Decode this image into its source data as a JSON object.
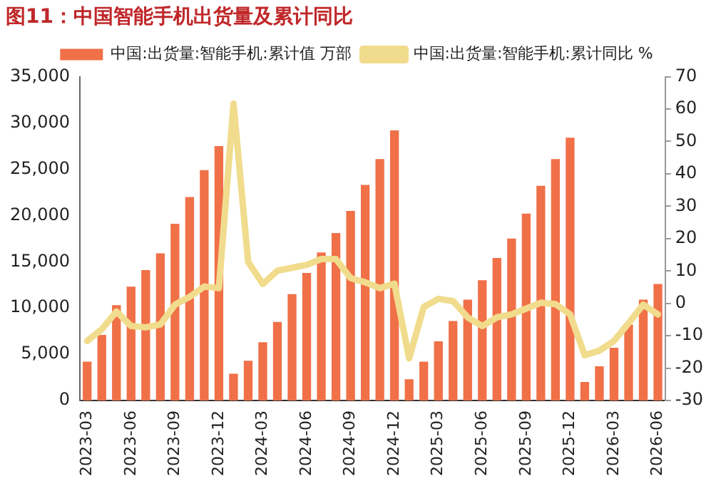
{
  "chart_data": {
    "type": "bar",
    "title": "图11：中国智能手机出货量及累计同比",
    "categories": [
      "2023-03",
      null,
      null,
      "2023-06",
      null,
      null,
      "2023-09",
      null,
      null,
      "2023-12",
      null,
      null,
      "2024-03",
      null,
      null,
      "2024-06",
      null,
      null,
      "2024-09",
      null,
      null,
      "2024-12",
      null,
      null,
      "2025-03",
      null,
      null,
      "2025-06",
      null,
      null,
      "2025-09",
      null,
      null,
      "2025-12",
      null,
      null,
      "2026-03",
      null,
      null,
      "2026-06"
    ],
    "series": [
      {
        "name": "中国:出货量:智能手机:累计值 万部",
        "color": "#f07048",
        "values": [
          4200,
          7100,
          10300,
          12300,
          14100,
          15900,
          19100,
          22000,
          24900,
          27500,
          2900,
          4300,
          6300,
          8500,
          11500,
          13800,
          16000,
          18100,
          20500,
          23300,
          26100,
          29200,
          2300,
          4200,
          6400,
          8600,
          10900,
          13000,
          15400,
          17500,
          20200,
          23200,
          26100,
          28400,
          2000,
          3700,
          5700,
          8200,
          10900,
          12600
        ]
      },
      {
        "name": "中国:出货量:智能手机:累计同比 %",
        "type": "line",
        "axis": "y2",
        "color": "#f0dc8c",
        "values": [
          -11.6,
          -8,
          -2.5,
          -7,
          -7.4,
          -6.5,
          -0.4,
          2,
          5.2,
          4.7,
          61.7,
          12.8,
          6,
          10.1,
          11,
          11.9,
          13.7,
          13.7,
          7.8,
          6.5,
          4.7,
          6.1,
          -17,
          -1.1,
          1.4,
          0.7,
          -4.3,
          -7,
          -4.3,
          -3.4,
          -1.6,
          0.2,
          -0.2,
          -3.4,
          -16,
          -14.6,
          -11.6,
          -6.1,
          -0.4,
          -3.4
        ]
      }
    ],
    "ylim": [
      0,
      35000
    ],
    "yticks": [
      0,
      {
        "value": 5000,
        "label": "5,000"
      },
      {
        "value": 10000,
        "label": "10,000"
      },
      {
        "value": 15000,
        "label": "15,000"
      },
      {
        "value": 20000,
        "label": "20,000"
      },
      {
        "value": 25000,
        "label": "25,000"
      },
      {
        "value": 30000,
        "label": "30,000"
      },
      {
        "value": 35000,
        "label": "35,000"
      }
    ],
    "y2lim": [
      -30,
      70
    ],
    "y2ticks": [
      -30,
      -20,
      -10,
      0,
      10,
      20,
      30,
      40,
      50,
      60,
      70
    ],
    "grid": false,
    "legend": "top",
    "marker": "none"
  }
}
